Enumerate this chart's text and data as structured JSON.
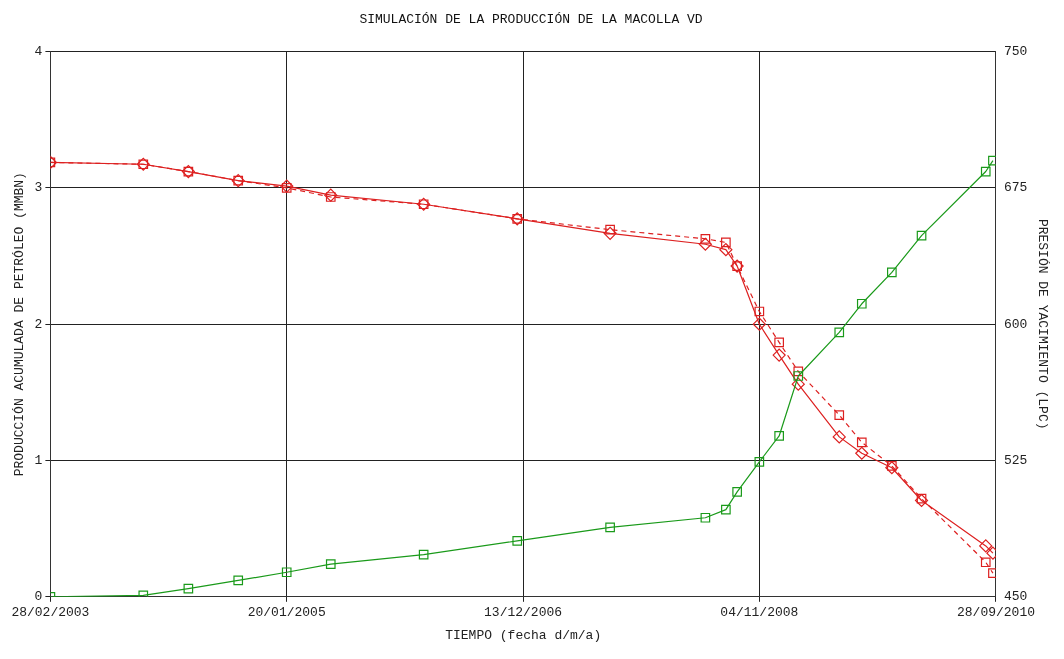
{
  "chart_data": {
    "type": "line",
    "title": "SIMULACIÓN DE LA PRODUCCIÓN DE LA MACOLLA VD",
    "xlabel": "TIEMPO (fecha d/m/a)",
    "ylabel": "PRODUCCIÓN ACUMULADA DE PETRÓLEO (MMBN)",
    "y2label": "PRESIÓN DE YACIMIENTO (LPC)",
    "x": [
      "2003-02-28",
      "2003-11-27",
      "2004-04-07",
      "2004-08-31",
      "2005-01-20",
      "2005-05-29",
      "2006-02-25",
      "2006-11-26",
      "2007-08-25",
      "2008-05-30",
      "2008-07-29",
      "2008-08-31",
      "2008-11-04",
      "2009-01-01",
      "2009-02-26",
      "2009-06-26",
      "2009-08-31",
      "2009-11-27",
      "2010-02-22",
      "2010-08-29",
      "2010-09-19"
    ],
    "series": [
      {
        "color": "#1a9a1a",
        "marker": "square",
        "line_style": "solid",
        "values": [
          0,
          0.01,
          0.06,
          0.12,
          0.18,
          0.24,
          0.31,
          0.41,
          0.51,
          0.58,
          0.64,
          0.77,
          0.99,
          1.18,
          1.62,
          1.94,
          2.15,
          2.38,
          2.65,
          3.12,
          3.2
        ]
      },
      {
        "color": "#dd2020",
        "marker": "diamond",
        "line_style": "solid",
        "axis": "y2",
        "values": [
          689,
          688,
          684,
          679,
          676,
          671,
          666,
          658,
          650,
          644,
          641,
          632,
          600,
          583,
          567,
          538,
          529,
          521,
          503,
          478,
          474
        ]
      },
      {
        "color": "#dd2020",
        "marker": "square",
        "line_style": "dashed",
        "axis": "y2",
        "values": [
          689,
          688,
          684,
          679,
          675,
          670,
          666,
          658,
          652,
          647,
          645,
          632,
          607,
          590,
          574,
          550,
          535,
          522,
          504,
          469,
          463
        ]
      }
    ],
    "xlim": [
      "2003-02-28",
      "2010-09-28"
    ],
    "xticks": [
      {
        "value": "2003-02-28",
        "label": "28/02/2003"
      },
      {
        "value": "2005-01-20",
        "label": "20/01/2005"
      },
      {
        "value": "2006-12-13",
        "label": "13/12/2006"
      },
      {
        "value": "2008-11-04",
        "label": "04/11/2008"
      },
      {
        "value": "2010-09-28",
        "label": "28/09/2010"
      }
    ],
    "ylim": [
      0,
      4
    ],
    "yticks": [
      0,
      1,
      2,
      3,
      4
    ],
    "y2lim": [
      450,
      750
    ],
    "y2ticks": [
      450,
      525,
      600,
      675,
      750
    ],
    "grid": true,
    "legend": false
  }
}
